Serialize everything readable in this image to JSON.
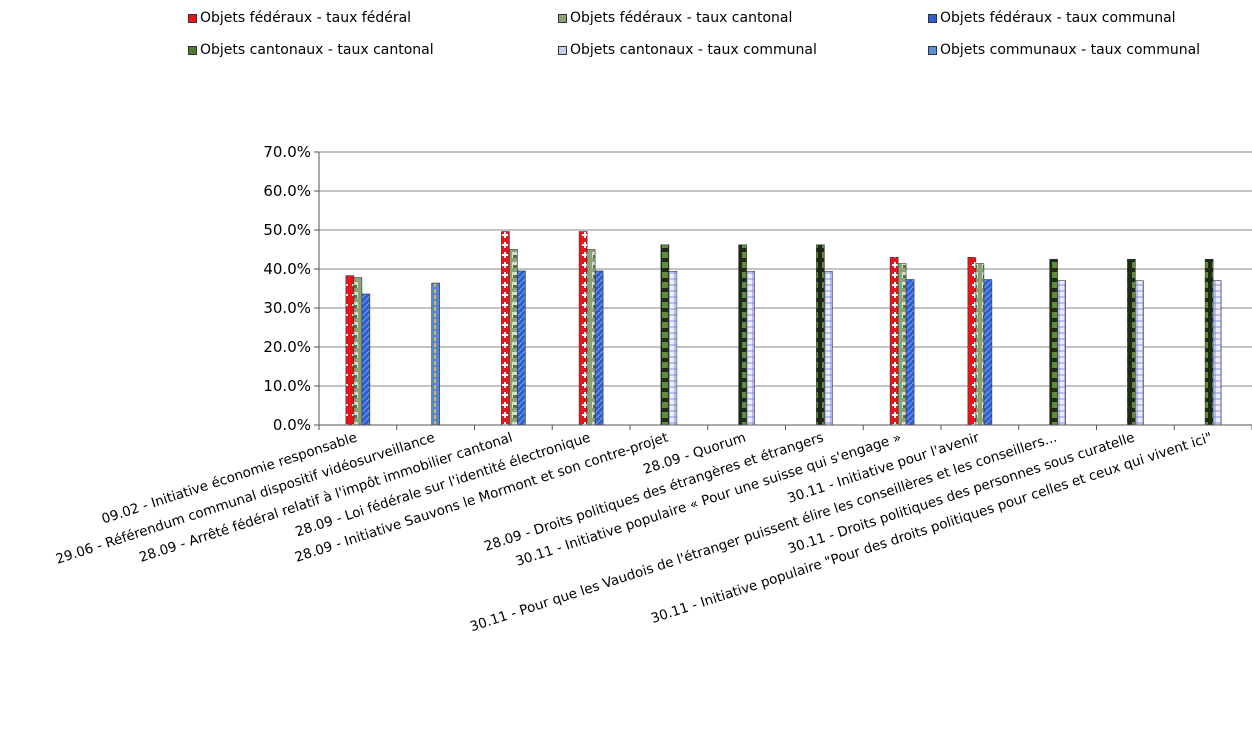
{
  "chart_data": {
    "type": "bar",
    "ylim": [
      0,
      70
    ],
    "yticks": [
      "0.0%",
      "10.0%",
      "20.0%",
      "30.0%",
      "40.0%",
      "50.0%",
      "60.0%",
      "70.0%"
    ],
    "grid": true,
    "legend_position": "top",
    "categories": [
      "09.02 - Initiative économie responsable",
      "29.06 - Référendum communal dispositif vidéosurveillance",
      "28.09 - Arrêté fédéral relatif à l'impôt immobilier cantonal",
      "28.09 - Loi fédérale sur l'identité électronique",
      "28.09 - Initiative Sauvons le Mormont et son contre-projet",
      "28.09 - Quorum",
      "28.09 - Droits politiques des étrangères et étrangers",
      "30.11 - Initiative populaire « Pour une suisse qui s'engage »",
      "30.11 - Initiative pour l'avenir",
      "30.11 - Pour que les Vaudois de l'étranger puissent élire les conseillères et les conseillers...",
      "30.11 - Droits politiques des personnes sous curatelle",
      "30.11 - Initiative populaire \"Pour des droits politiques pour celles et ceux qui vivent ici\""
    ],
    "series": [
      {
        "name": "Objets fédéraux - taux fédéral",
        "color": "#e8141b",
        "values": [
          38.3,
          null,
          49.6,
          49.6,
          null,
          null,
          null,
          43.0,
          43.0,
          null,
          null,
          null
        ]
      },
      {
        "name": "Objets fédéraux - taux cantonal",
        "color": "#8aa37a",
        "values": [
          37.8,
          null,
          45.0,
          45.0,
          null,
          null,
          null,
          41.4,
          41.4,
          null,
          null,
          null
        ]
      },
      {
        "name": "Objets fédéraux - taux communal",
        "color": "#2f5fd1",
        "values": [
          33.6,
          null,
          39.5,
          39.5,
          null,
          null,
          null,
          37.3,
          37.3,
          null,
          null,
          null
        ]
      },
      {
        "name": "Objets cantonaux - taux cantonal",
        "color": "#4f7a34",
        "values": [
          null,
          null,
          null,
          null,
          46.2,
          46.2,
          46.2,
          null,
          null,
          42.5,
          42.5,
          42.5
        ]
      },
      {
        "name": "Objets cantonaux - taux communal",
        "color": "#c8ccf2",
        "values": [
          null,
          null,
          null,
          null,
          39.4,
          39.4,
          39.4,
          null,
          null,
          37.0,
          37.0,
          37.0
        ]
      },
      {
        "name": "Objets communaux - taux communal",
        "color": "#5b8ed6",
        "values": [
          null,
          36.4,
          null,
          null,
          null,
          null,
          null,
          null,
          null,
          null,
          null,
          null
        ]
      }
    ]
  }
}
